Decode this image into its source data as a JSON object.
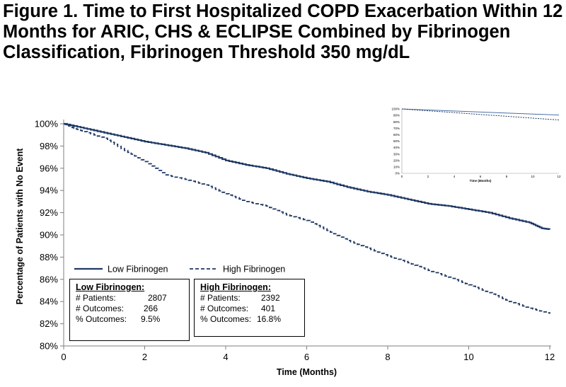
{
  "title": "Figure 1. Time to First Hospitalized COPD Exacerbation Within 12 Months for ARIC, CHS & ECLIPSE Combined by Fibrinogen Classification, Fibrinogen Threshold 350 mg/dL",
  "colors": {
    "low": "#1f3864",
    "high": "#1f3864",
    "axis": "#7f7f7f",
    "inset_low": "#4a6fa5",
    "inset_high": "#1f3864"
  },
  "chart_data": {
    "type": "line",
    "xlabel": "Time (Months)",
    "ylabel": "Percentage of Patients with No Event",
    "xlim": [
      0,
      12
    ],
    "ylim": [
      80,
      100
    ],
    "xticks": [
      "0",
      "2",
      "4",
      "6",
      "8",
      "10",
      "12"
    ],
    "yticks": [
      "80%",
      "82%",
      "84%",
      "86%",
      "88%",
      "90%",
      "92%",
      "94%",
      "96%",
      "98%",
      "100%"
    ],
    "legend": {
      "placement": "bottom-left"
    },
    "series": [
      {
        "name": "Low Fibrinogen",
        "style": "solid",
        "points": [
          [
            0,
            100
          ],
          [
            0.5,
            99.6
          ],
          [
            1,
            99.2
          ],
          [
            1.5,
            98.8
          ],
          [
            2,
            98.4
          ],
          [
            2.5,
            98.1
          ],
          [
            3,
            97.8
          ],
          [
            3.5,
            97.4
          ],
          [
            4,
            96.7
          ],
          [
            4.5,
            96.3
          ],
          [
            5,
            96.0
          ],
          [
            5.5,
            95.5
          ],
          [
            6,
            95.1
          ],
          [
            6.5,
            94.8
          ],
          [
            7,
            94.3
          ],
          [
            7.5,
            93.9
          ],
          [
            8,
            93.6
          ],
          [
            8.5,
            93.2
          ],
          [
            9,
            92.8
          ],
          [
            9.5,
            92.6
          ],
          [
            10,
            92.3
          ],
          [
            10.5,
            92.0
          ],
          [
            11,
            91.5
          ],
          [
            11.5,
            91.1
          ],
          [
            11.8,
            90.6
          ],
          [
            12,
            90.5
          ]
        ]
      },
      {
        "name": "High Fibrinogen",
        "style": "dashed",
        "points": [
          [
            0,
            100
          ],
          [
            0.25,
            99.6
          ],
          [
            0.5,
            99.3
          ],
          [
            1,
            98.7
          ],
          [
            1.5,
            97.6
          ],
          [
            2,
            96.6
          ],
          [
            2.5,
            95.4
          ],
          [
            3,
            95.0
          ],
          [
            3.5,
            94.5
          ],
          [
            4,
            93.7
          ],
          [
            4.5,
            93.0
          ],
          [
            5,
            92.6
          ],
          [
            5.5,
            91.8
          ],
          [
            6,
            91.3
          ],
          [
            6.5,
            90.4
          ],
          [
            7,
            89.5
          ],
          [
            7.5,
            88.8
          ],
          [
            8,
            88.1
          ],
          [
            8.5,
            87.5
          ],
          [
            9,
            86.8
          ],
          [
            9.5,
            86.2
          ],
          [
            10,
            85.5
          ],
          [
            10.5,
            84.8
          ],
          [
            11,
            84.0
          ],
          [
            11.5,
            83.4
          ],
          [
            12,
            82.9
          ]
        ]
      }
    ],
    "inset": {
      "xlabel": "Time (Months)",
      "xticks": [
        "0",
        "2",
        "4",
        "6",
        "8",
        "10",
        "12"
      ],
      "yticks": [
        "0%",
        "10%",
        "20%",
        "30%",
        "40%",
        "50%",
        "60%",
        "70%",
        "80%",
        "90%",
        "100%"
      ],
      "ylim": [
        0,
        100
      ],
      "series": [
        {
          "points": [
            [
              0,
              100
            ],
            [
              12,
              90.5
            ]
          ],
          "style": "solid"
        },
        {
          "points": [
            [
              0,
              100
            ],
            [
              12,
              82.9
            ]
          ],
          "style": "dashed"
        }
      ]
    }
  },
  "boxes": [
    {
      "header": "Low Fibrinogen:",
      "rows": [
        {
          "k": "# Patients:",
          "v": "2807"
        },
        {
          "k": "# Outcomes:",
          "v": "266"
        },
        {
          "k": "% Outcomes:",
          "v": "9.5%"
        }
      ]
    },
    {
      "header": "High Fibrinogen:",
      "rows": [
        {
          "k": "# Patients:",
          "v": "2392"
        },
        {
          "k": "# Outcomes:",
          "v": "401"
        },
        {
          "k": "% Outcomes:",
          "v": "16.8%"
        }
      ]
    }
  ]
}
